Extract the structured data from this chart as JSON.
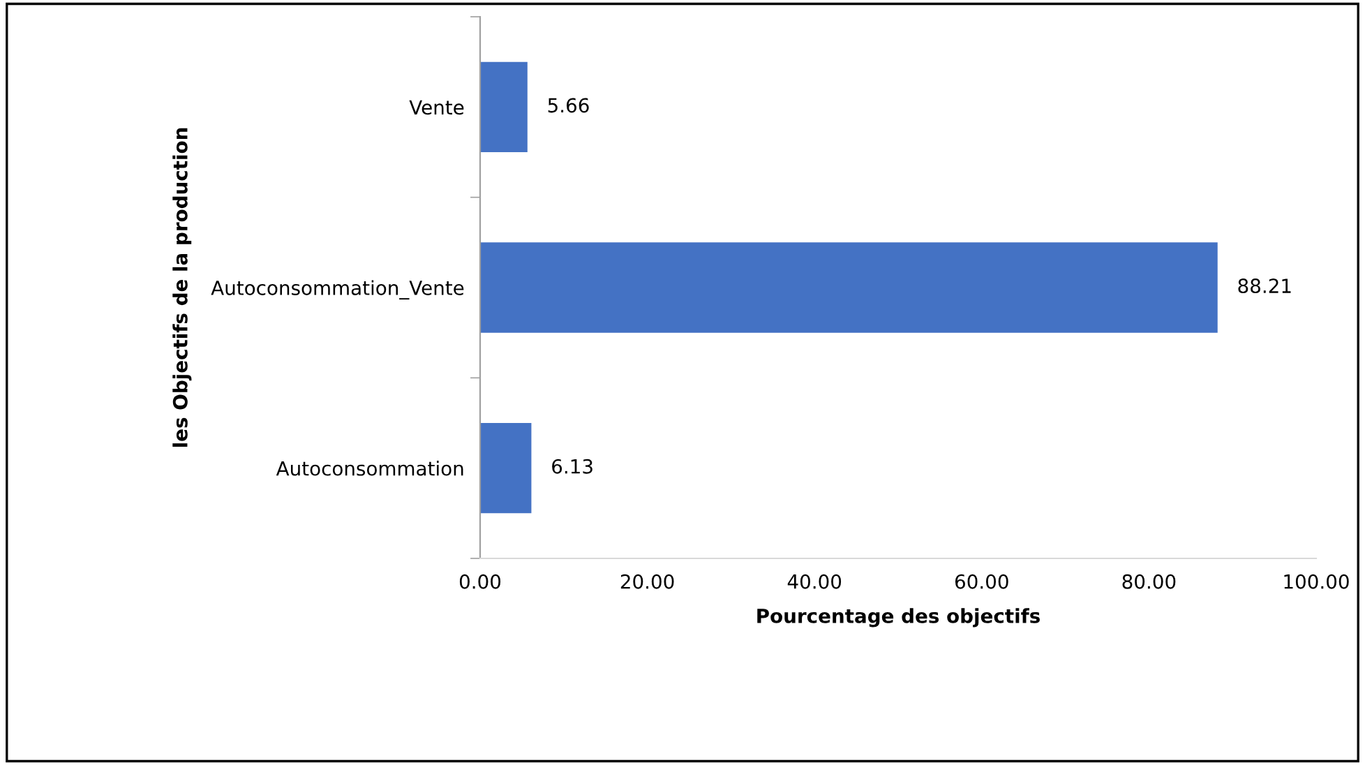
{
  "chart_data": {
    "type": "bar",
    "orientation": "horizontal",
    "categories": [
      "Vente",
      "Autoconsommation_Vente",
      "Autoconsommation"
    ],
    "values": [
      5.66,
      88.21,
      6.13
    ],
    "color": "#4472c4",
    "data_labels": true,
    "xlabel": "Pourcentage des objectifs",
    "ylabel": "les Objectifs de la production",
    "xlim": [
      0,
      100
    ],
    "xticks": [
      {
        "value": 0,
        "label": "0.00"
      },
      {
        "value": 20,
        "label": "20.00"
      },
      {
        "value": 40,
        "label": "40.00"
      },
      {
        "value": 60,
        "label": "60.00"
      },
      {
        "value": 80,
        "label": "80.00"
      },
      {
        "value": 100,
        "label": "100.00"
      }
    ],
    "grid": false,
    "legend": false
  }
}
